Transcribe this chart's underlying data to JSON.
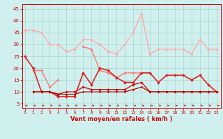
{
  "background_color": "#cff0ee",
  "grid_color": "#b0d8d0",
  "x_label": "Vent moyen/en rafales ( km/h )",
  "x_ticks": [
    0,
    1,
    2,
    3,
    4,
    5,
    6,
    7,
    8,
    9,
    10,
    11,
    12,
    13,
    14,
    15,
    16,
    17,
    18,
    19,
    20,
    21,
    22,
    23
  ],
  "y_ticks": [
    5,
    10,
    15,
    20,
    25,
    30,
    35,
    40,
    45
  ],
  "ylim": [
    3,
    47
  ],
  "xlim": [
    -0.3,
    23.5
  ],
  "series": [
    {
      "color": "#ffaaaa",
      "linewidth": 1.0,
      "marker": "D",
      "markersize": 1.8,
      "y": [
        36,
        36,
        35,
        30,
        30,
        27,
        28,
        32,
        32,
        30,
        27,
        26,
        30,
        35,
        43,
        26,
        28,
        28,
        28,
        28,
        26,
        32,
        28,
        28
      ]
    },
    {
      "color": "#ff7777",
      "linewidth": 1.0,
      "marker": "D",
      "markersize": 1.8,
      "y": [
        null,
        19,
        19,
        12,
        15,
        null,
        null,
        29,
        28,
        19,
        18,
        16,
        18,
        18,
        18,
        null,
        null,
        null,
        null,
        null,
        null,
        null,
        null,
        null
      ]
    },
    {
      "color": "#dd2222",
      "linewidth": 1.2,
      "marker": "D",
      "markersize": 2.0,
      "y": [
        25,
        20,
        10,
        10,
        8,
        8,
        8,
        18,
        13,
        20,
        19,
        16,
        14,
        14,
        18,
        18,
        14,
        17,
        17,
        17,
        15,
        17,
        13,
        10
      ]
    },
    {
      "color": "#cc1111",
      "linewidth": 1.0,
      "marker": "D",
      "markersize": 1.8,
      "y": [
        null,
        10,
        10,
        10,
        9,
        10,
        10,
        12,
        11,
        11,
        11,
        11,
        11,
        13,
        14,
        10,
        10,
        10,
        10,
        10,
        10,
        10,
        10,
        10
      ]
    },
    {
      "color": "#bb0000",
      "linewidth": 0.9,
      "marker": "D",
      "markersize": 1.5,
      "y": [
        null,
        10,
        10,
        10,
        9,
        9,
        9,
        10,
        10,
        10,
        10,
        10,
        10,
        11,
        12,
        10,
        10,
        10,
        10,
        10,
        10,
        10,
        10,
        10
      ]
    }
  ],
  "arrow_color": "#cc2222",
  "axis_color": "#cc0000",
  "tick_color": "#cc0000",
  "label_fontsize": 5.5,
  "xlabel_fontsize": 6.0,
  "ylabel_fontsize": 5.5
}
